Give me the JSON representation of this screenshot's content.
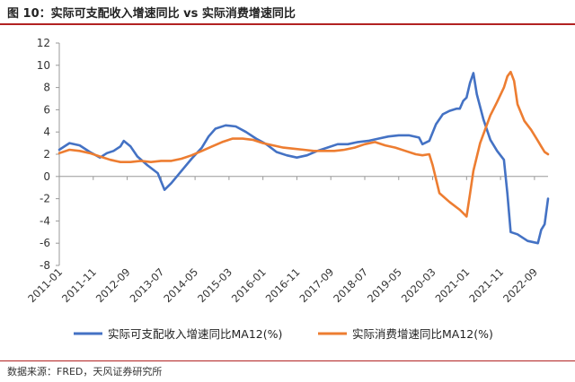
{
  "header": {
    "figure_title": "图 10：实际可支配收入增速同比 vs 实际消费增速同比"
  },
  "footer": {
    "source": "数据来源：FRED，天风证券研究所"
  },
  "colors": {
    "income": "#4472c4",
    "consumption": "#ed7d31",
    "accent_rule": "#b22222"
  },
  "chart_data": {
    "type": "line",
    "title": "",
    "xlabel": "",
    "ylabel": "",
    "ylim": [
      -8,
      12
    ],
    "yticks": [
      "12",
      "10",
      "8",
      "6",
      "4",
      "2",
      "0",
      "-2",
      "-4",
      "-6",
      "-8"
    ],
    "xlim": [
      "2011-01",
      "2023-01"
    ],
    "xticks": [
      "2011-01",
      "2011-11",
      "2012-09",
      "2013-07",
      "2014-05",
      "2015-03",
      "2016-01",
      "2016-11",
      "2017-09",
      "2018-07",
      "2019-05",
      "2020-03",
      "2021-01",
      "2021-11",
      "2022-09"
    ],
    "grid": false,
    "legend": "bottom",
    "series": [
      {
        "name": "实际可支配收入增速同比MA12(%)",
        "color": "#4472c4",
        "points": [
          [
            "2011-01",
            2.4
          ],
          [
            "2011-04",
            3.0
          ],
          [
            "2011-07",
            2.8
          ],
          [
            "2011-10",
            2.2
          ],
          [
            "2012-01",
            1.7
          ],
          [
            "2012-03",
            2.1
          ],
          [
            "2012-05",
            2.3
          ],
          [
            "2012-07",
            2.7
          ],
          [
            "2012-08",
            3.2
          ],
          [
            "2012-10",
            2.7
          ],
          [
            "2012-12",
            1.8
          ],
          [
            "2013-03",
            1.0
          ],
          [
            "2013-06",
            0.3
          ],
          [
            "2013-08",
            -1.2
          ],
          [
            "2013-10",
            -0.6
          ],
          [
            "2014-01",
            0.5
          ],
          [
            "2014-04",
            1.6
          ],
          [
            "2014-07",
            2.6
          ],
          [
            "2014-09",
            3.6
          ],
          [
            "2014-11",
            4.3
          ],
          [
            "2015-02",
            4.6
          ],
          [
            "2015-05",
            4.5
          ],
          [
            "2015-08",
            4.0
          ],
          [
            "2015-11",
            3.4
          ],
          [
            "2016-02",
            2.9
          ],
          [
            "2016-05",
            2.2
          ],
          [
            "2016-08",
            1.9
          ],
          [
            "2016-11",
            1.7
          ],
          [
            "2017-02",
            1.9
          ],
          [
            "2017-05",
            2.3
          ],
          [
            "2017-08",
            2.6
          ],
          [
            "2017-11",
            2.9
          ],
          [
            "2018-02",
            2.9
          ],
          [
            "2018-05",
            3.1
          ],
          [
            "2018-08",
            3.2
          ],
          [
            "2018-11",
            3.4
          ],
          [
            "2019-02",
            3.6
          ],
          [
            "2019-05",
            3.7
          ],
          [
            "2019-08",
            3.7
          ],
          [
            "2019-11",
            3.5
          ],
          [
            "2019-12",
            2.9
          ],
          [
            "2020-02",
            3.2
          ],
          [
            "2020-04",
            4.7
          ],
          [
            "2020-06",
            5.6
          ],
          [
            "2020-08",
            5.9
          ],
          [
            "2020-10",
            6.1
          ],
          [
            "2020-11",
            6.1
          ],
          [
            "2020-12",
            6.8
          ],
          [
            "2021-01",
            7.1
          ],
          [
            "2021-02",
            8.4
          ],
          [
            "2021-03",
            9.3
          ],
          [
            "2021-04",
            7.4
          ],
          [
            "2021-06",
            5.1
          ],
          [
            "2021-08",
            3.3
          ],
          [
            "2021-10",
            2.3
          ],
          [
            "2021-12",
            1.5
          ],
          [
            "2022-01",
            -1.5
          ],
          [
            "2022-02",
            -5.0
          ],
          [
            "2022-04",
            -5.2
          ],
          [
            "2022-07",
            -5.8
          ],
          [
            "2022-10",
            -6.0
          ],
          [
            "2022-11",
            -4.8
          ],
          [
            "2022-12",
            -4.3
          ],
          [
            "2023-01",
            -2.0
          ]
        ]
      },
      {
        "name": "实际消费增速同比MA12(%)",
        "color": "#ed7d31",
        "points": [
          [
            "2011-01",
            2.1
          ],
          [
            "2011-04",
            2.4
          ],
          [
            "2011-07",
            2.3
          ],
          [
            "2011-10",
            2.1
          ],
          [
            "2012-01",
            1.8
          ],
          [
            "2012-04",
            1.5
          ],
          [
            "2012-07",
            1.3
          ],
          [
            "2012-10",
            1.3
          ],
          [
            "2013-01",
            1.4
          ],
          [
            "2013-04",
            1.3
          ],
          [
            "2013-07",
            1.4
          ],
          [
            "2013-10",
            1.4
          ],
          [
            "2014-01",
            1.6
          ],
          [
            "2014-04",
            1.9
          ],
          [
            "2014-07",
            2.3
          ],
          [
            "2014-10",
            2.7
          ],
          [
            "2015-01",
            3.1
          ],
          [
            "2015-04",
            3.4
          ],
          [
            "2015-07",
            3.4
          ],
          [
            "2015-10",
            3.3
          ],
          [
            "2016-01",
            3.0
          ],
          [
            "2016-04",
            2.8
          ],
          [
            "2016-07",
            2.6
          ],
          [
            "2016-10",
            2.5
          ],
          [
            "2017-01",
            2.4
          ],
          [
            "2017-04",
            2.3
          ],
          [
            "2017-07",
            2.3
          ],
          [
            "2017-10",
            2.3
          ],
          [
            "2018-01",
            2.4
          ],
          [
            "2018-04",
            2.6
          ],
          [
            "2018-07",
            2.9
          ],
          [
            "2018-10",
            3.1
          ],
          [
            "2019-01",
            2.8
          ],
          [
            "2019-04",
            2.6
          ],
          [
            "2019-07",
            2.3
          ],
          [
            "2019-10",
            2.0
          ],
          [
            "2019-12",
            1.9
          ],
          [
            "2020-02",
            2.0
          ],
          [
            "2020-03",
            1.0
          ],
          [
            "2020-05",
            -1.5
          ],
          [
            "2020-08",
            -2.3
          ],
          [
            "2020-11",
            -3.0
          ],
          [
            "2021-01",
            -3.6
          ],
          [
            "2021-02",
            -1.6
          ],
          [
            "2021-03",
            0.5
          ],
          [
            "2021-05",
            3.0
          ],
          [
            "2021-08",
            5.5
          ],
          [
            "2021-10",
            6.7
          ],
          [
            "2021-12",
            8.0
          ],
          [
            "2022-01",
            9.0
          ],
          [
            "2022-02",
            9.4
          ],
          [
            "2022-03",
            8.6
          ],
          [
            "2022-04",
            6.5
          ],
          [
            "2022-06",
            5.0
          ],
          [
            "2022-08",
            4.2
          ],
          [
            "2022-10",
            3.2
          ],
          [
            "2022-11",
            2.7
          ],
          [
            "2022-12",
            2.2
          ],
          [
            "2023-01",
            2.0
          ]
        ]
      }
    ]
  }
}
